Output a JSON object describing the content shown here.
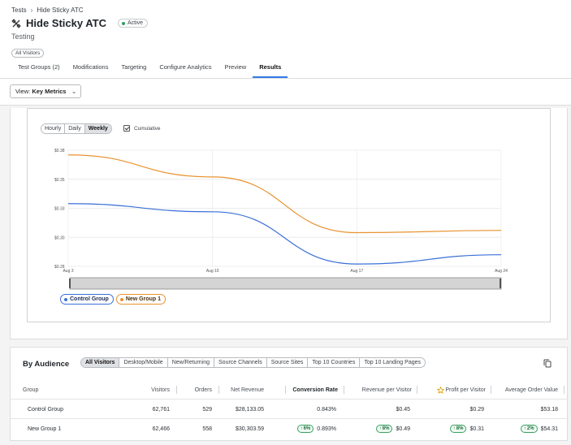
{
  "breadcrumb": {
    "root": "Tests",
    "current": "Hide Sticky ATC"
  },
  "header": {
    "title": "Hide Sticky ATC",
    "status": "Active",
    "subtitle": "Testing",
    "audience": "All Visitors"
  },
  "tabs": [
    {
      "label": "Test Groups (2)"
    },
    {
      "label": "Modifications"
    },
    {
      "label": "Targeting"
    },
    {
      "label": "Configure Analytics"
    },
    {
      "label": "Preview"
    },
    {
      "label": "Results"
    }
  ],
  "view": {
    "prefix": "View:",
    "value": "Key Metrics"
  },
  "granularity": {
    "options": [
      "Hourly",
      "Daily",
      "Weekly"
    ],
    "selected": "Weekly"
  },
  "cumulative": {
    "label": "Cumulative",
    "checked": true
  },
  "chart_data": {
    "type": "line",
    "x": [
      "Aug 3",
      "Aug 10",
      "Aug 17",
      "Aug 24"
    ],
    "y_ticks": [
      "$0.28",
      "$0.30",
      "$0.33",
      "$0.35",
      "$0.38"
    ],
    "ylim": [
      0.28,
      0.38
    ],
    "series": [
      {
        "name": "Control Group",
        "color": "#3b6fd8",
        "values": [
          0.334,
          0.327,
          0.282,
          0.29
        ]
      },
      {
        "name": "New Group 1",
        "color": "#e8922f",
        "values": [
          0.376,
          0.357,
          0.309,
          0.311
        ]
      }
    ],
    "legend": "bottom-left",
    "grid": true
  },
  "audience": {
    "title": "By Audience",
    "tabs": [
      "All Visitors",
      "Desktop/Mobile",
      "New/Returning",
      "Source Channels",
      "Source Sites",
      "Top 10 Countries",
      "Top 10 Landing Pages"
    ],
    "selected": "All Visitors",
    "columns": [
      "Group",
      "Visitors",
      "Orders",
      "Net Revenue",
      "Conversion Rate",
      "Revenue per Visitor",
      "Profit per Visitor",
      "Average Order Value"
    ],
    "rows": [
      {
        "group": "Control Group",
        "visitors": "62,761",
        "orders": "529",
        "net_revenue": "$28,133.05",
        "conversion": "0.843%",
        "rpv": "$0.45",
        "ppv": "$0.29",
        "aov": "$53.18"
      },
      {
        "group": "New Group 1",
        "visitors": "62,466",
        "orders": "558",
        "net_revenue": "$30,303.59",
        "conversion": "0.893%",
        "conversion_lift": "6%",
        "rpv": "$0.49",
        "rpv_lift": "8%",
        "ppv": "$0.31",
        "ppv_lift": "8%",
        "aov": "$54.31",
        "aov_lift": "2%"
      }
    ]
  },
  "colors": {
    "accent": "#2f7ae5",
    "control": "#3b6fd8",
    "new_group": "#e8922f",
    "positive": "#37a062"
  }
}
